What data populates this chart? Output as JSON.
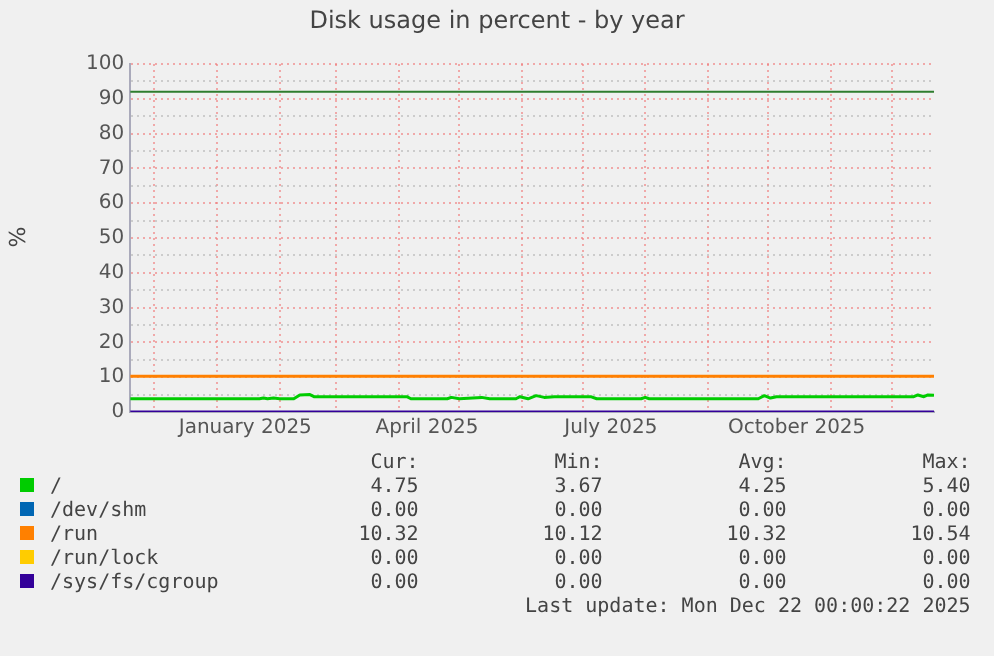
{
  "chart_data": {
    "type": "line",
    "title": "Disk usage in percent - by year",
    "ylabel": "%",
    "xlim": [
      "2024-11-19",
      "2025-12-22"
    ],
    "xticks": [
      {
        "value": "2024-12-01",
        "label": null
      },
      {
        "value": "2025-01-01",
        "label": null
      },
      {
        "value": "2025-01-15",
        "label": "January 2025"
      },
      {
        "value": "2025-02-01",
        "label": null
      },
      {
        "value": "2025-03-01",
        "label": null
      },
      {
        "value": "2025-04-01",
        "label": null
      },
      {
        "value": "2025-04-15",
        "label": "April 2025"
      },
      {
        "value": "2025-05-01",
        "label": null
      },
      {
        "value": "2025-06-01",
        "label": null
      },
      {
        "value": "2025-07-01",
        "label": null
      },
      {
        "value": "2025-07-15",
        "label": "July 2025"
      },
      {
        "value": "2025-08-01",
        "label": null
      },
      {
        "value": "2025-09-01",
        "label": null
      },
      {
        "value": "2025-10-01",
        "label": null
      },
      {
        "value": "2025-10-15",
        "label": "October 2025"
      },
      {
        "value": "2025-11-01",
        "label": null
      },
      {
        "value": "2025-12-01",
        "label": null
      }
    ],
    "ylim": [
      0,
      100
    ],
    "yticks": [
      0,
      {
        "value": 5,
        "label": null
      },
      10,
      {
        "value": 15,
        "label": null
      },
      20,
      {
        "value": 25,
        "label": null
      },
      30,
      {
        "value": 35,
        "label": null
      },
      40,
      {
        "value": 45,
        "label": null
      },
      50,
      {
        "value": 55,
        "label": null
      },
      60,
      {
        "value": 65,
        "label": null
      },
      70,
      {
        "value": 75,
        "label": null
      },
      80,
      {
        "value": 85,
        "label": null
      },
      90,
      {
        "value": 95,
        "label": null
      },
      100
    ],
    "grid": true,
    "legend": "bottom",
    "marker": "none",
    "line_style": "solid",
    "ref_lines": [
      {
        "axis": "y",
        "value": 92,
        "color": "#2e7d2e"
      }
    ],
    "series": [
      {
        "name": "/",
        "color": "#00cc00",
        "x": [
          "2024-11-19",
          "2025-01-22",
          "2025-01-24",
          "2025-01-26",
          "2025-01-29",
          "2025-02-01",
          "2025-02-08",
          "2025-02-11",
          "2025-02-16",
          "2025-02-18",
          "2025-04-05",
          "2025-04-07",
          "2025-04-25",
          "2025-04-27",
          "2025-05-01",
          "2025-05-12",
          "2025-05-16",
          "2025-05-29",
          "2025-05-31",
          "2025-06-04",
          "2025-06-08",
          "2025-06-12",
          "2025-06-17",
          "2025-07-05",
          "2025-07-08",
          "2025-07-30",
          "2025-08-01",
          "2025-08-03",
          "2025-09-26",
          "2025-09-29",
          "2025-10-02",
          "2025-10-05",
          "2025-12-12",
          "2025-12-14",
          "2025-12-17",
          "2025-12-19",
          "2025-12-22"
        ],
        "values": [
          3.8,
          3.8,
          4.0,
          3.8,
          4.0,
          3.8,
          3.8,
          4.9,
          5.0,
          4.4,
          4.4,
          3.8,
          3.8,
          4.2,
          3.8,
          4.2,
          3.8,
          3.8,
          4.4,
          3.8,
          4.7,
          4.2,
          4.4,
          4.4,
          3.8,
          3.8,
          4.2,
          3.8,
          3.8,
          4.7,
          4.0,
          4.4,
          4.4,
          4.9,
          4.4,
          4.9,
          4.8
        ]
      },
      {
        "name": "/dev/shm",
        "color": "#0066b3"
      },
      {
        "name": "/run",
        "color": "#ff8000",
        "x": [
          "2024-11-19",
          "2025-12-22"
        ],
        "values": [
          10.3,
          10.3
        ]
      },
      {
        "name": "/run/lock",
        "color": "#ffcc00"
      },
      {
        "name": "/sys/fs/cgroup",
        "color": "#330099",
        "x": [
          "2024-11-19",
          "2025-12-22"
        ],
        "values": [
          0,
          0
        ]
      }
    ],
    "annotations": [
      "Cur:",
      "Min:",
      "Avg:",
      "Max:",
      "4.75",
      "3.67",
      "4.25",
      "5.40",
      "0.00",
      "0.00",
      "0.00",
      "0.00",
      "10.32",
      "10.12",
      "10.32",
      "10.54",
      "0.00",
      "0.00",
      "0.00",
      "0.00",
      "0.00",
      "0.00",
      "0.00",
      "0.00",
      "Last update: Mon Dec 22 00:00:22 2025"
    ]
  }
}
